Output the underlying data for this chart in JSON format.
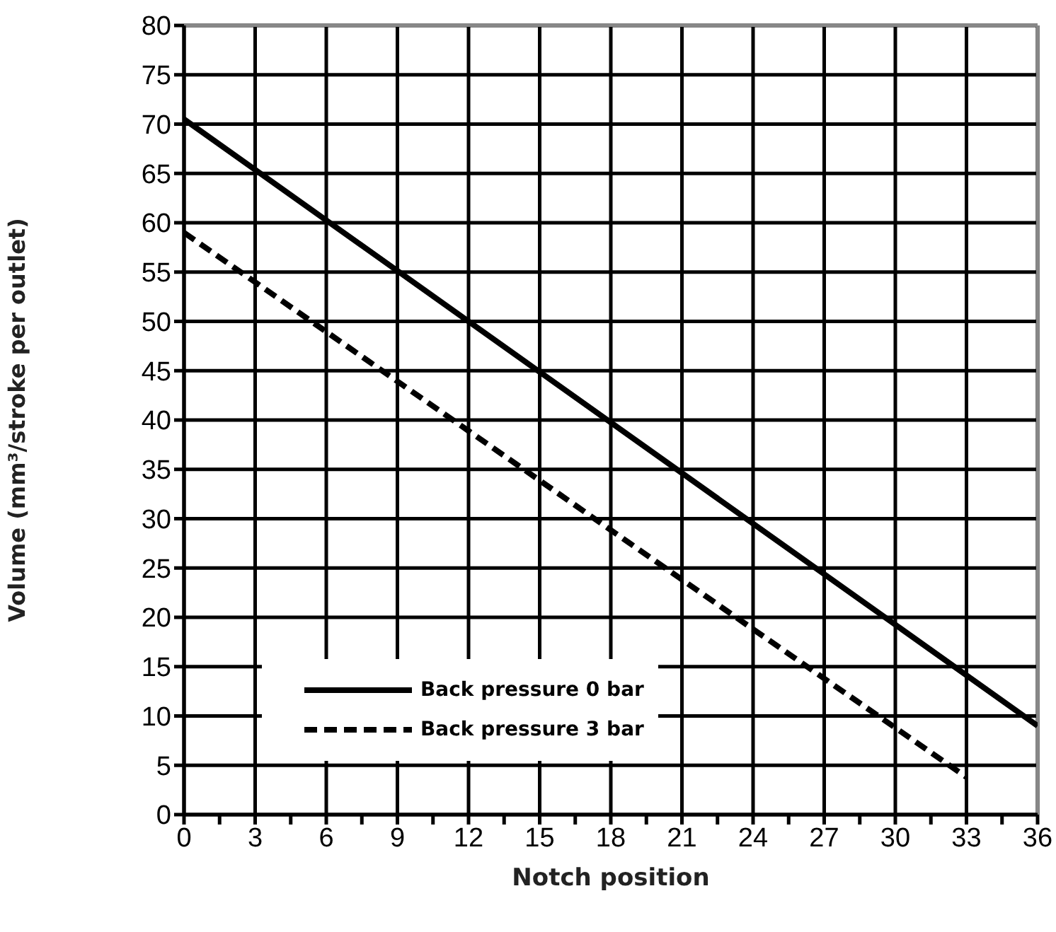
{
  "chart_data": {
    "type": "line",
    "xlabel": "Notch position",
    "ylabel": "Volume (mm³/stroke per outlet)",
    "xlim": [
      0,
      36
    ],
    "ylim": [
      0,
      80
    ],
    "xticks": [
      0,
      {
        "value": 1.5,
        "label": null
      },
      3,
      {
        "value": 4.5,
        "label": null
      },
      6,
      {
        "value": 7.5,
        "label": null
      },
      9,
      {
        "value": 10.5,
        "label": null
      },
      12,
      {
        "value": 13.5,
        "label": null
      },
      15,
      {
        "value": 16.5,
        "label": null
      },
      18,
      {
        "value": 19.5,
        "label": null
      },
      21,
      {
        "value": 22.5,
        "label": null
      },
      24,
      {
        "value": 25.5,
        "label": null
      },
      27,
      {
        "value": 28.5,
        "label": null
      },
      30,
      {
        "value": 31.5,
        "label": null
      },
      33,
      {
        "value": 34.5,
        "label": null
      },
      36
    ],
    "yticks": [
      0,
      5,
      10,
      15,
      20,
      25,
      30,
      35,
      40,
      45,
      50,
      55,
      60,
      65,
      70,
      75,
      80
    ],
    "grid": true,
    "legend": "bottom left",
    "marker": "none",
    "series": [
      {
        "name": "Back pressure 0 bar",
        "color": "#000000",
        "line_style": "solid",
        "x": [
          0,
          12,
          24,
          36
        ],
        "values": [
          70.5,
          50,
          29.5,
          9
        ]
      },
      {
        "name": "Back pressure 3 bar",
        "color": "#000000",
        "line_style": "dashed",
        "x": [
          0,
          12,
          24,
          33
        ],
        "values": [
          59,
          38.9,
          18.8,
          3.8
        ]
      }
    ]
  }
}
